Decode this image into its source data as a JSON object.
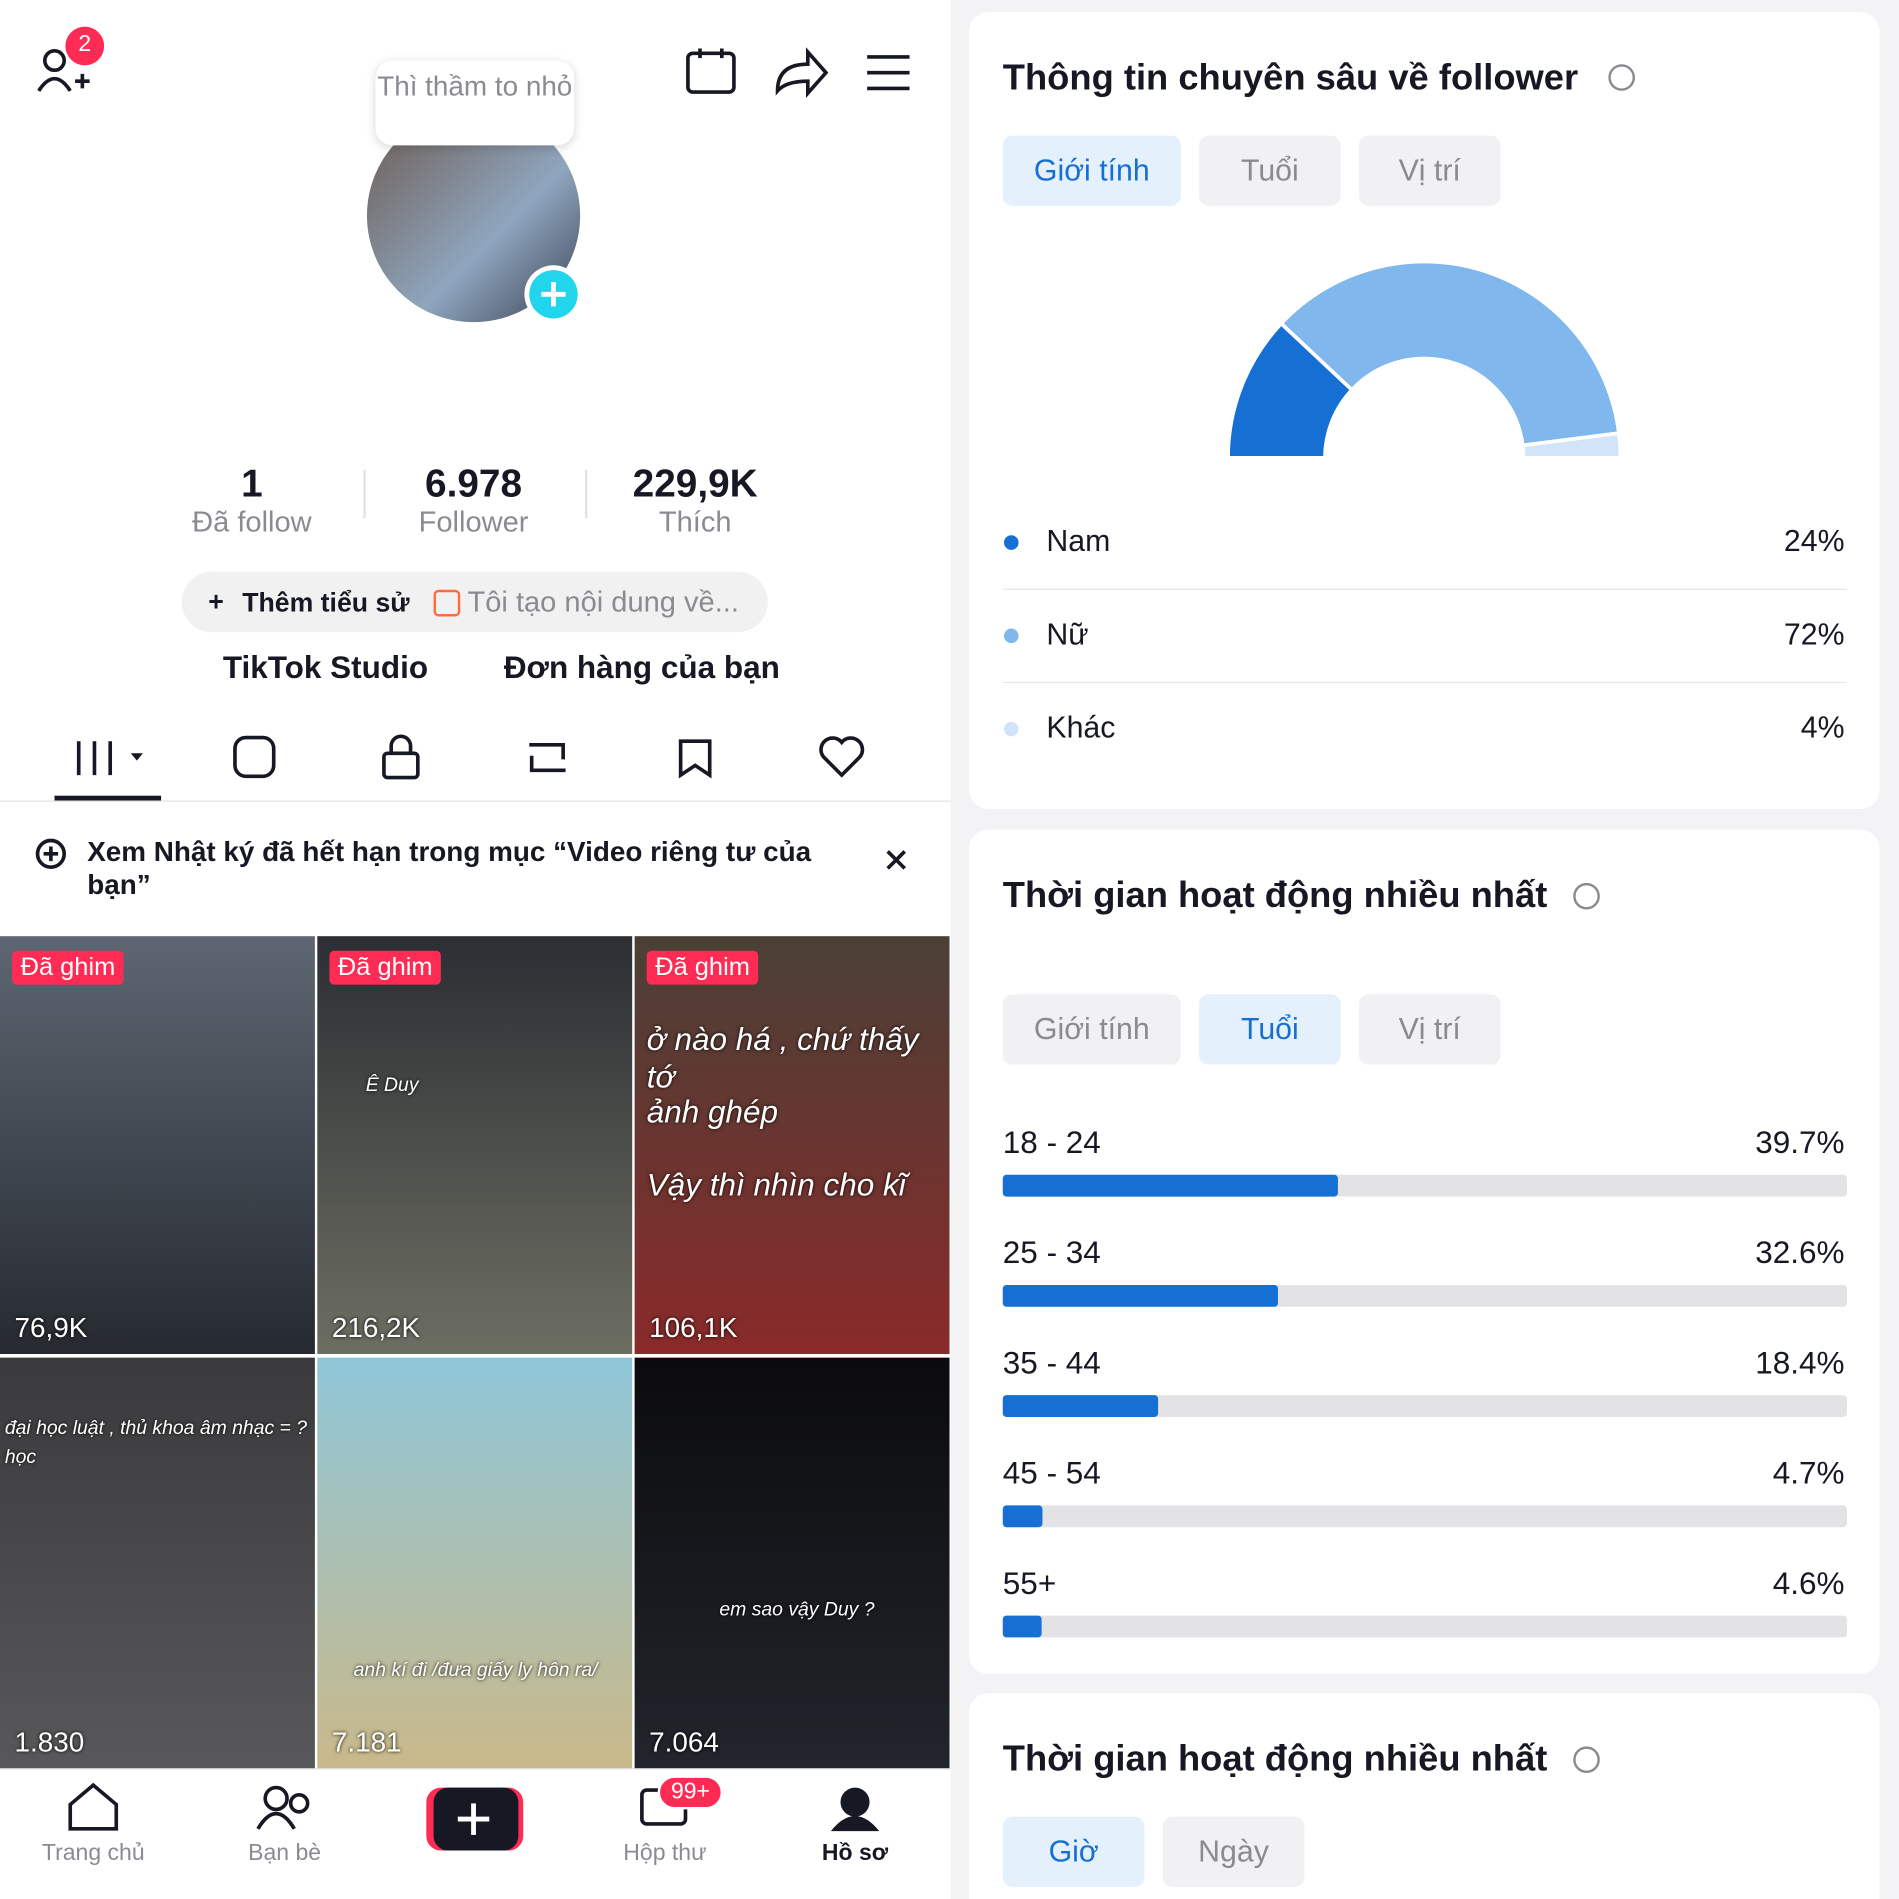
{
  "profile": {
    "notification_badge": "2",
    "note": "Thì thầm to nhỏ",
    "stats": [
      {
        "value": "1",
        "label": "Đã follow"
      },
      {
        "value": "6.978",
        "label": "Follower"
      },
      {
        "value": "229,9K",
        "label": "Thích"
      }
    ],
    "bio_button": "Thêm tiểu sử",
    "bio_tag": "Tôi tạo nội dung về...",
    "links": [
      "TikTok Studio",
      "Đơn hàng của bạn"
    ]
  },
  "banner": "Xem Nhật ký đã hết hạn trong mục “Video riêng tư của bạn”",
  "videos": [
    {
      "pinned": "Đã ghim",
      "views": "76,9K",
      "captions": []
    },
    {
      "pinned": "Đã ghim",
      "views": "216,2K",
      "captions": [
        "Ê Duy"
      ]
    },
    {
      "pinned": "Đã ghim",
      "views": "106,1K",
      "captions": [
        "ở nào há , chứ thấy tớ",
        "ảnh ghép",
        "Vậy thì nhìn cho kĩ"
      ]
    },
    {
      "views": "1.830",
      "captions": [
        "đại học luật , thủ khoa âm nhạc = ?",
        "học"
      ]
    },
    {
      "views": "7.181",
      "captions": [
        "anh kí đi /đưa giấy ly hôn ra/"
      ]
    },
    {
      "views": "7.064",
      "captions": [
        "em sao vậy Duy ?"
      ]
    }
  ],
  "nav": {
    "items": [
      "Trang chủ",
      "Bạn bè",
      "Hộp thư",
      "Hồ sơ"
    ],
    "inbox_badge": "99+"
  },
  "gender_card": {
    "title": "Thông tin chuyên sâu về follower",
    "tabs": [
      "Giới tính",
      "Tuổi",
      "Vị trí"
    ],
    "categories": [
      "Nam",
      "Nữ",
      "Khác"
    ],
    "values": [
      24,
      72,
      4
    ],
    "value_labels": [
      "24%",
      "72%",
      "4%"
    ],
    "colors": [
      "#1670d4",
      "#80b7ec",
      "#d2e5f8"
    ]
  },
  "age_card": {
    "title": "Thời gian hoạt động nhiều nhất",
    "tabs": [
      "Giới tính",
      "Tuổi",
      "Vị trí"
    ],
    "categories": [
      "18 - 24",
      "25 - 34",
      "35 - 44",
      "45 - 54",
      "55+"
    ],
    "values": [
      39.7,
      32.6,
      18.4,
      4.7,
      4.6
    ],
    "value_labels": [
      "39.7%",
      "32.6%",
      "18.4%",
      "4.7%",
      "4.6%"
    ],
    "xlim": [
      0,
      100
    ],
    "color": "#1670d4"
  },
  "active_card": {
    "title": "Thời gian hoạt động nhiều nhất",
    "tabs": [
      "Giờ",
      "Ngày"
    ]
  }
}
